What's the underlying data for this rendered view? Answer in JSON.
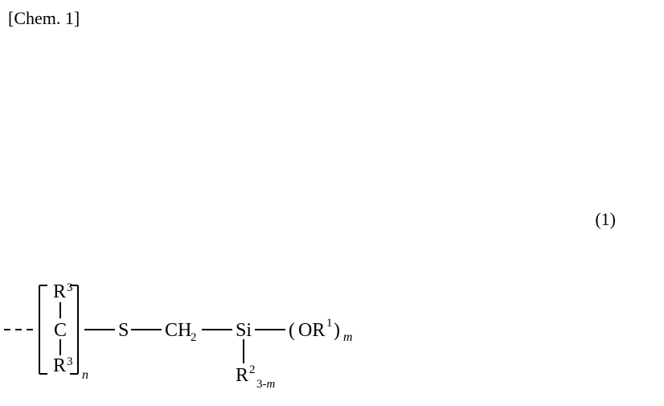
{
  "header_label": "[Chem. 1]",
  "equation_number": "(1)",
  "structure": {
    "dash_segments": 3,
    "bracket": {
      "top_sup": "R",
      "top_sup_idx": "3",
      "bot_sub": "R",
      "bot_sub_idx": "3",
      "center": "C",
      "repeat_sub": "n"
    },
    "chain": [
      {
        "text": "S"
      },
      {
        "text": "CH",
        "sub": "2"
      },
      {
        "text": "Si"
      },
      {
        "text_open": "(",
        "text_mid": "OR",
        "sup": "1",
        "text_close": ")",
        "trail_sub": "m"
      }
    ],
    "si_down": {
      "text": "R",
      "sup": "2",
      "sub_expr": "3-m"
    }
  },
  "style": {
    "font_size_main": 24,
    "font_size_sub": 15,
    "font_size_italic_sub": 16,
    "stroke": "#000000",
    "stroke_width": 2,
    "bracket_stroke_width": 2
  }
}
